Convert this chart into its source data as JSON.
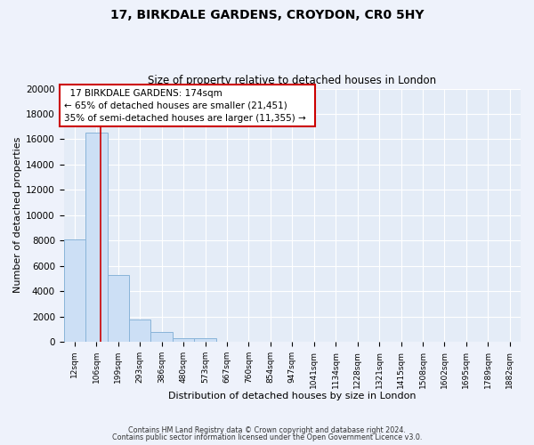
{
  "title_line1": "17, BIRKDALE GARDENS, CROYDON, CR0 5HY",
  "title_line2": "Size of property relative to detached houses in London",
  "xlabel": "Distribution of detached houses by size in London",
  "ylabel": "Number of detached properties",
  "bar_labels": [
    "12sqm",
    "106sqm",
    "199sqm",
    "293sqm",
    "386sqm",
    "480sqm",
    "573sqm",
    "667sqm",
    "760sqm",
    "854sqm",
    "947sqm",
    "1041sqm",
    "1134sqm",
    "1228sqm",
    "1321sqm",
    "1415sqm",
    "1508sqm",
    "1602sqm",
    "1695sqm",
    "1789sqm",
    "1882sqm"
  ],
  "bar_heights": [
    8100,
    16500,
    5300,
    1750,
    800,
    300,
    300,
    0,
    0,
    0,
    0,
    0,
    0,
    0,
    0,
    0,
    0,
    0,
    0,
    0,
    0
  ],
  "bar_color": "#ccdff5",
  "bar_edge_color": "#89b4d9",
  "ylim": [
    0,
    20000
  ],
  "yticks": [
    0,
    2000,
    4000,
    6000,
    8000,
    10000,
    12000,
    14000,
    16000,
    18000,
    20000
  ],
  "red_line_x": 1.18,
  "annotation_line1": "17 BIRKDALE GARDENS: 174sqm",
  "annotation_line2": "← 65% of detached houses are smaller (21,451)",
  "annotation_line3": "35% of semi-detached houses are larger (11,355) →",
  "footer_line1": "Contains HM Land Registry data © Crown copyright and database right 2024.",
  "footer_line2": "Contains public sector information licensed under the Open Government Licence v3.0.",
  "background_color": "#eef2fb",
  "plot_background_color": "#e4ecf7",
  "grid_color": "#ffffff",
  "annotation_border_color": "#cc0000"
}
